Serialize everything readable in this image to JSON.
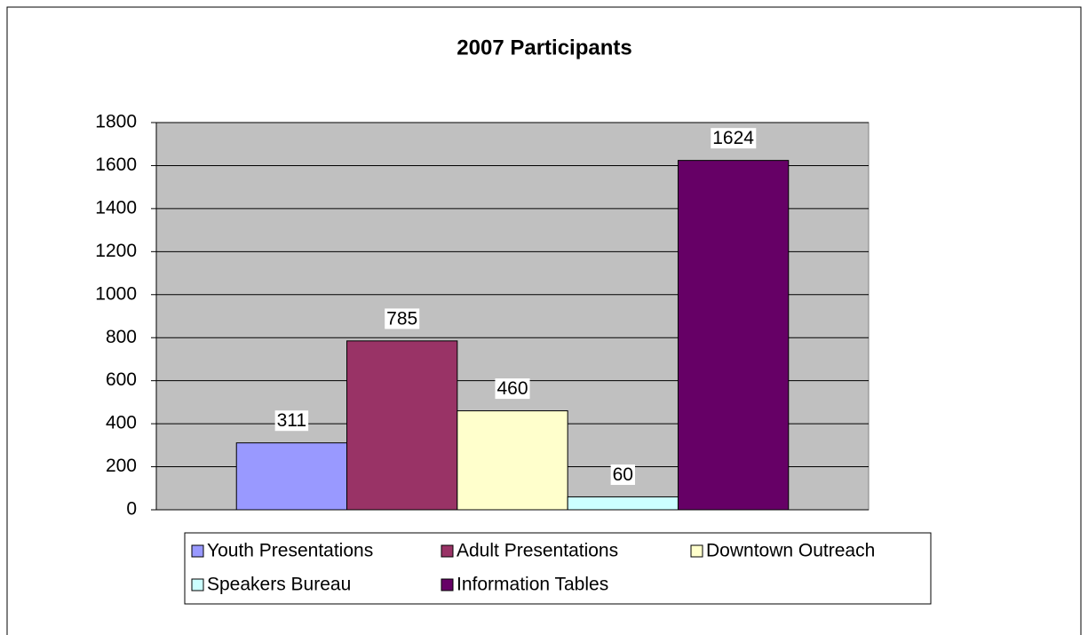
{
  "chart_data": {
    "type": "bar",
    "title": "2007 Participants",
    "categories": [
      null
    ],
    "series": [
      {
        "name": "Youth Presentations",
        "color": "#9999ff",
        "values": [
          311
        ]
      },
      {
        "name": "Adult Presentations",
        "color": "#993366",
        "values": [
          785
        ]
      },
      {
        "name": "Downtown Outreach",
        "color": "#ffffcc",
        "values": [
          460
        ]
      },
      {
        "name": "Speakers Bureau",
        "color": "#ccffff",
        "values": [
          60
        ]
      },
      {
        "name": "Information Tables",
        "color": "#660066",
        "values": [
          1624
        ]
      }
    ],
    "ylim": [
      0,
      1800
    ],
    "yticks": [
      0,
      200,
      400,
      600,
      800,
      1000,
      1200,
      1400,
      1600,
      1800
    ],
    "grid": true,
    "legend": "bottom",
    "plot_background": "#c0c0c0"
  }
}
